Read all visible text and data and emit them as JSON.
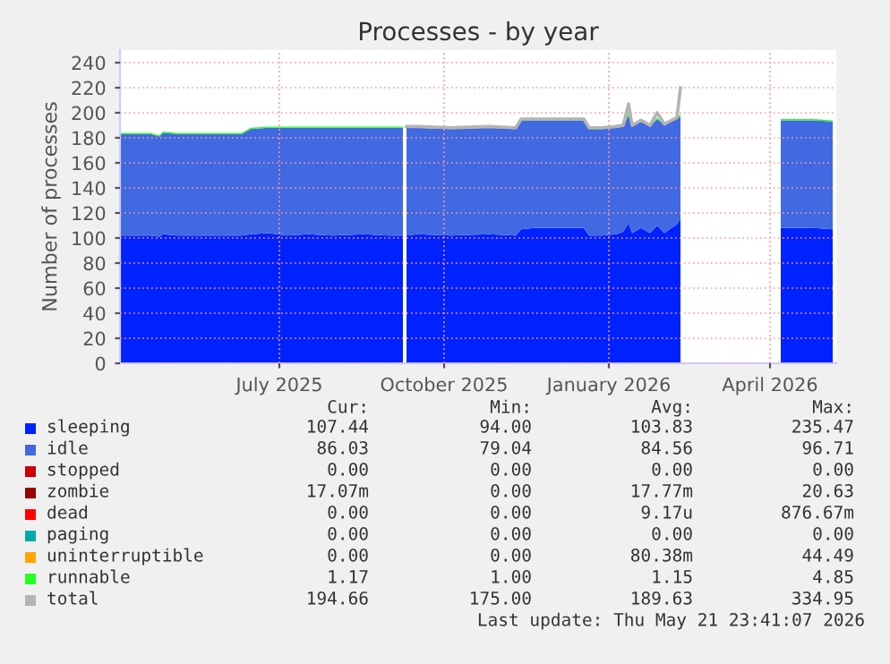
{
  "chart_data": {
    "type": "area",
    "stacked": true,
    "title": "Processes - by year",
    "ylabel": "Number of processes",
    "x": [
      "2025-04-18",
      "2025-05-05",
      "2025-05-10",
      "2025-05-12",
      "2025-05-20",
      "2025-06-01",
      "2025-06-15",
      "2025-06-25",
      "2025-06-30",
      "2025-07-10",
      "2025-07-20",
      "2025-08-01",
      "2025-08-15",
      "2025-09-01",
      "2025-09-15",
      "2025-09-23",
      "2025-09-24",
      "2025-09-25",
      "2025-10-01",
      "2025-10-20",
      "2025-11-10",
      "2025-11-25",
      "2025-11-28",
      "2025-12-05",
      "2025-12-20",
      "2026-01-02",
      "2026-01-05",
      "2026-01-12",
      "2026-01-20",
      "2026-01-24",
      "2026-01-27",
      "2026-01-29",
      "2026-02-03",
      "2026-02-08",
      "2026-02-12",
      "2026-02-16",
      "2026-02-20",
      "2026-02-23",
      "2026-02-25",
      "2026-02-26",
      "2026-04-21",
      "2026-04-22",
      "2026-05-01",
      "2026-05-10",
      "2026-05-21"
    ],
    "series": [
      {
        "name": "sleeping",
        "color": "#0022ff",
        "values": [
          102,
          102,
          101,
          103,
          102,
          102,
          102,
          102,
          103,
          104,
          102,
          103,
          102,
          103,
          102,
          102,
          null,
          102,
          103,
          102,
          103,
          102,
          107,
          108,
          108,
          108,
          102,
          102,
          103,
          105,
          112,
          104,
          108,
          104,
          110,
          104,
          108,
          111,
          115,
          null,
          null,
          108,
          108,
          108,
          107
        ]
      },
      {
        "name": "idle",
        "color": "#4169e1",
        "values": [
          81,
          81,
          80,
          81,
          81,
          81,
          81,
          81,
          84,
          84,
          86,
          85,
          86,
          85,
          86,
          86,
          null,
          86,
          85,
          85,
          85,
          85,
          87,
          86,
          86,
          86,
          85,
          85,
          85,
          84,
          86,
          85,
          85,
          85,
          85,
          86,
          85,
          84,
          82,
          null,
          null,
          86,
          86,
          86,
          86
        ]
      },
      {
        "name": "stopped",
        "color": "#cc0000",
        "values": [
          null,
          null,
          null,
          null,
          null,
          null,
          null,
          null,
          null,
          null,
          null,
          null,
          null,
          null,
          null,
          null,
          null,
          null,
          null,
          null,
          null,
          null,
          null,
          null,
          null,
          null,
          null,
          null,
          null,
          null,
          null,
          null,
          null,
          null,
          null,
          null,
          null,
          null,
          null,
          null,
          null,
          null,
          null,
          null,
          null
        ]
      },
      {
        "name": "zombie",
        "color": "#990000",
        "values": [
          null,
          null,
          null,
          null,
          null,
          null,
          null,
          null,
          null,
          null,
          null,
          null,
          null,
          null,
          null,
          null,
          null,
          null,
          null,
          null,
          null,
          null,
          null,
          null,
          null,
          null,
          null,
          null,
          null,
          null,
          null,
          null,
          null,
          null,
          null,
          null,
          null,
          null,
          null,
          null,
          null,
          null,
          null,
          null,
          null
        ]
      },
      {
        "name": "dead",
        "color": "#ff0000",
        "values": [
          null,
          null,
          null,
          null,
          null,
          null,
          null,
          null,
          null,
          null,
          null,
          null,
          null,
          null,
          null,
          null,
          null,
          null,
          null,
          null,
          null,
          null,
          null,
          null,
          null,
          null,
          null,
          null,
          null,
          null,
          null,
          null,
          null,
          null,
          null,
          null,
          null,
          null,
          null,
          null,
          null,
          null,
          null,
          null,
          null
        ]
      },
      {
        "name": "paging",
        "color": "#00aaaa",
        "values": [
          null,
          null,
          null,
          null,
          null,
          null,
          null,
          null,
          null,
          null,
          null,
          null,
          null,
          null,
          null,
          null,
          null,
          null,
          null,
          null,
          null,
          null,
          null,
          null,
          null,
          null,
          null,
          null,
          null,
          null,
          null,
          null,
          null,
          null,
          null,
          null,
          null,
          null,
          null,
          null,
          null,
          null,
          null,
          null,
          null
        ]
      },
      {
        "name": "uninterruptible",
        "color": "#ffa500",
        "values": [
          null,
          null,
          null,
          null,
          null,
          null,
          null,
          null,
          null,
          null,
          null,
          null,
          null,
          null,
          null,
          null,
          null,
          null,
          null,
          null,
          null,
          null,
          null,
          null,
          null,
          null,
          null,
          null,
          null,
          null,
          null,
          null,
          null,
          null,
          null,
          null,
          null,
          null,
          null,
          null,
          null,
          null,
          null,
          null,
          null
        ]
      },
      {
        "name": "runnable",
        "color": "#22ff22",
        "values": [
          1,
          1,
          1,
          1,
          1,
          1,
          1,
          1,
          1,
          1,
          1,
          1,
          1,
          1,
          1,
          1,
          null,
          1,
          1,
          1,
          1,
          1,
          1,
          1,
          1,
          1,
          1,
          1,
          1,
          1,
          2,
          1,
          1,
          1,
          1,
          1,
          1,
          1,
          2,
          null,
          null,
          1,
          1,
          1,
          1
        ]
      },
      {
        "name": "total",
        "type": "line",
        "color": "#b4b4b4",
        "values": [
          null,
          null,
          null,
          null,
          null,
          null,
          null,
          null,
          null,
          null,
          null,
          null,
          null,
          null,
          null,
          null,
          null,
          189,
          189,
          188,
          189,
          188,
          195,
          195,
          195,
          195,
          188,
          188,
          189,
          190,
          207,
          190,
          194,
          190,
          200,
          191,
          194,
          196,
          220,
          null,
          null,
          null,
          null,
          null,
          null
        ]
      }
    ],
    "xlim": [
      "2025-04-18",
      "2026-05-23"
    ],
    "xticks": [
      {
        "value": "2025-07-16",
        "label": "July 2025"
      },
      {
        "value": "2025-10-16",
        "label": "October 2025"
      },
      {
        "value": "2026-01-16",
        "label": "January 2026"
      },
      {
        "value": "2026-04-16",
        "label": "April 2026"
      }
    ],
    "ylim": [
      0,
      250
    ],
    "yticks": [
      0,
      20,
      40,
      60,
      80,
      100,
      120,
      140,
      160,
      180,
      200,
      220,
      240
    ],
    "grid": true,
    "legend": "bottom",
    "annotations": [
      "Cur:",
      "Min:",
      "Avg:",
      "Max:",
      "107.44",
      "94.00",
      "103.83",
      "235.47",
      "86.03",
      "79.04",
      "84.56",
      "96.71",
      "0.00",
      "0.00",
      "0.00",
      "0.00",
      "17.07m",
      "0.00",
      "17.77m",
      "20.63",
      "0.00",
      "0.00",
      "9.17u",
      "876.67m",
      "0.00",
      "0.00",
      "0.00",
      "0.00",
      "0.00",
      "0.00",
      "80.38m",
      "44.49",
      "1.17",
      "1.00",
      "1.15",
      "4.85",
      "194.66",
      "175.00",
      "189.63",
      "334.95",
      "Last update: Thu May 21 23:41:07 2026"
    ]
  }
}
